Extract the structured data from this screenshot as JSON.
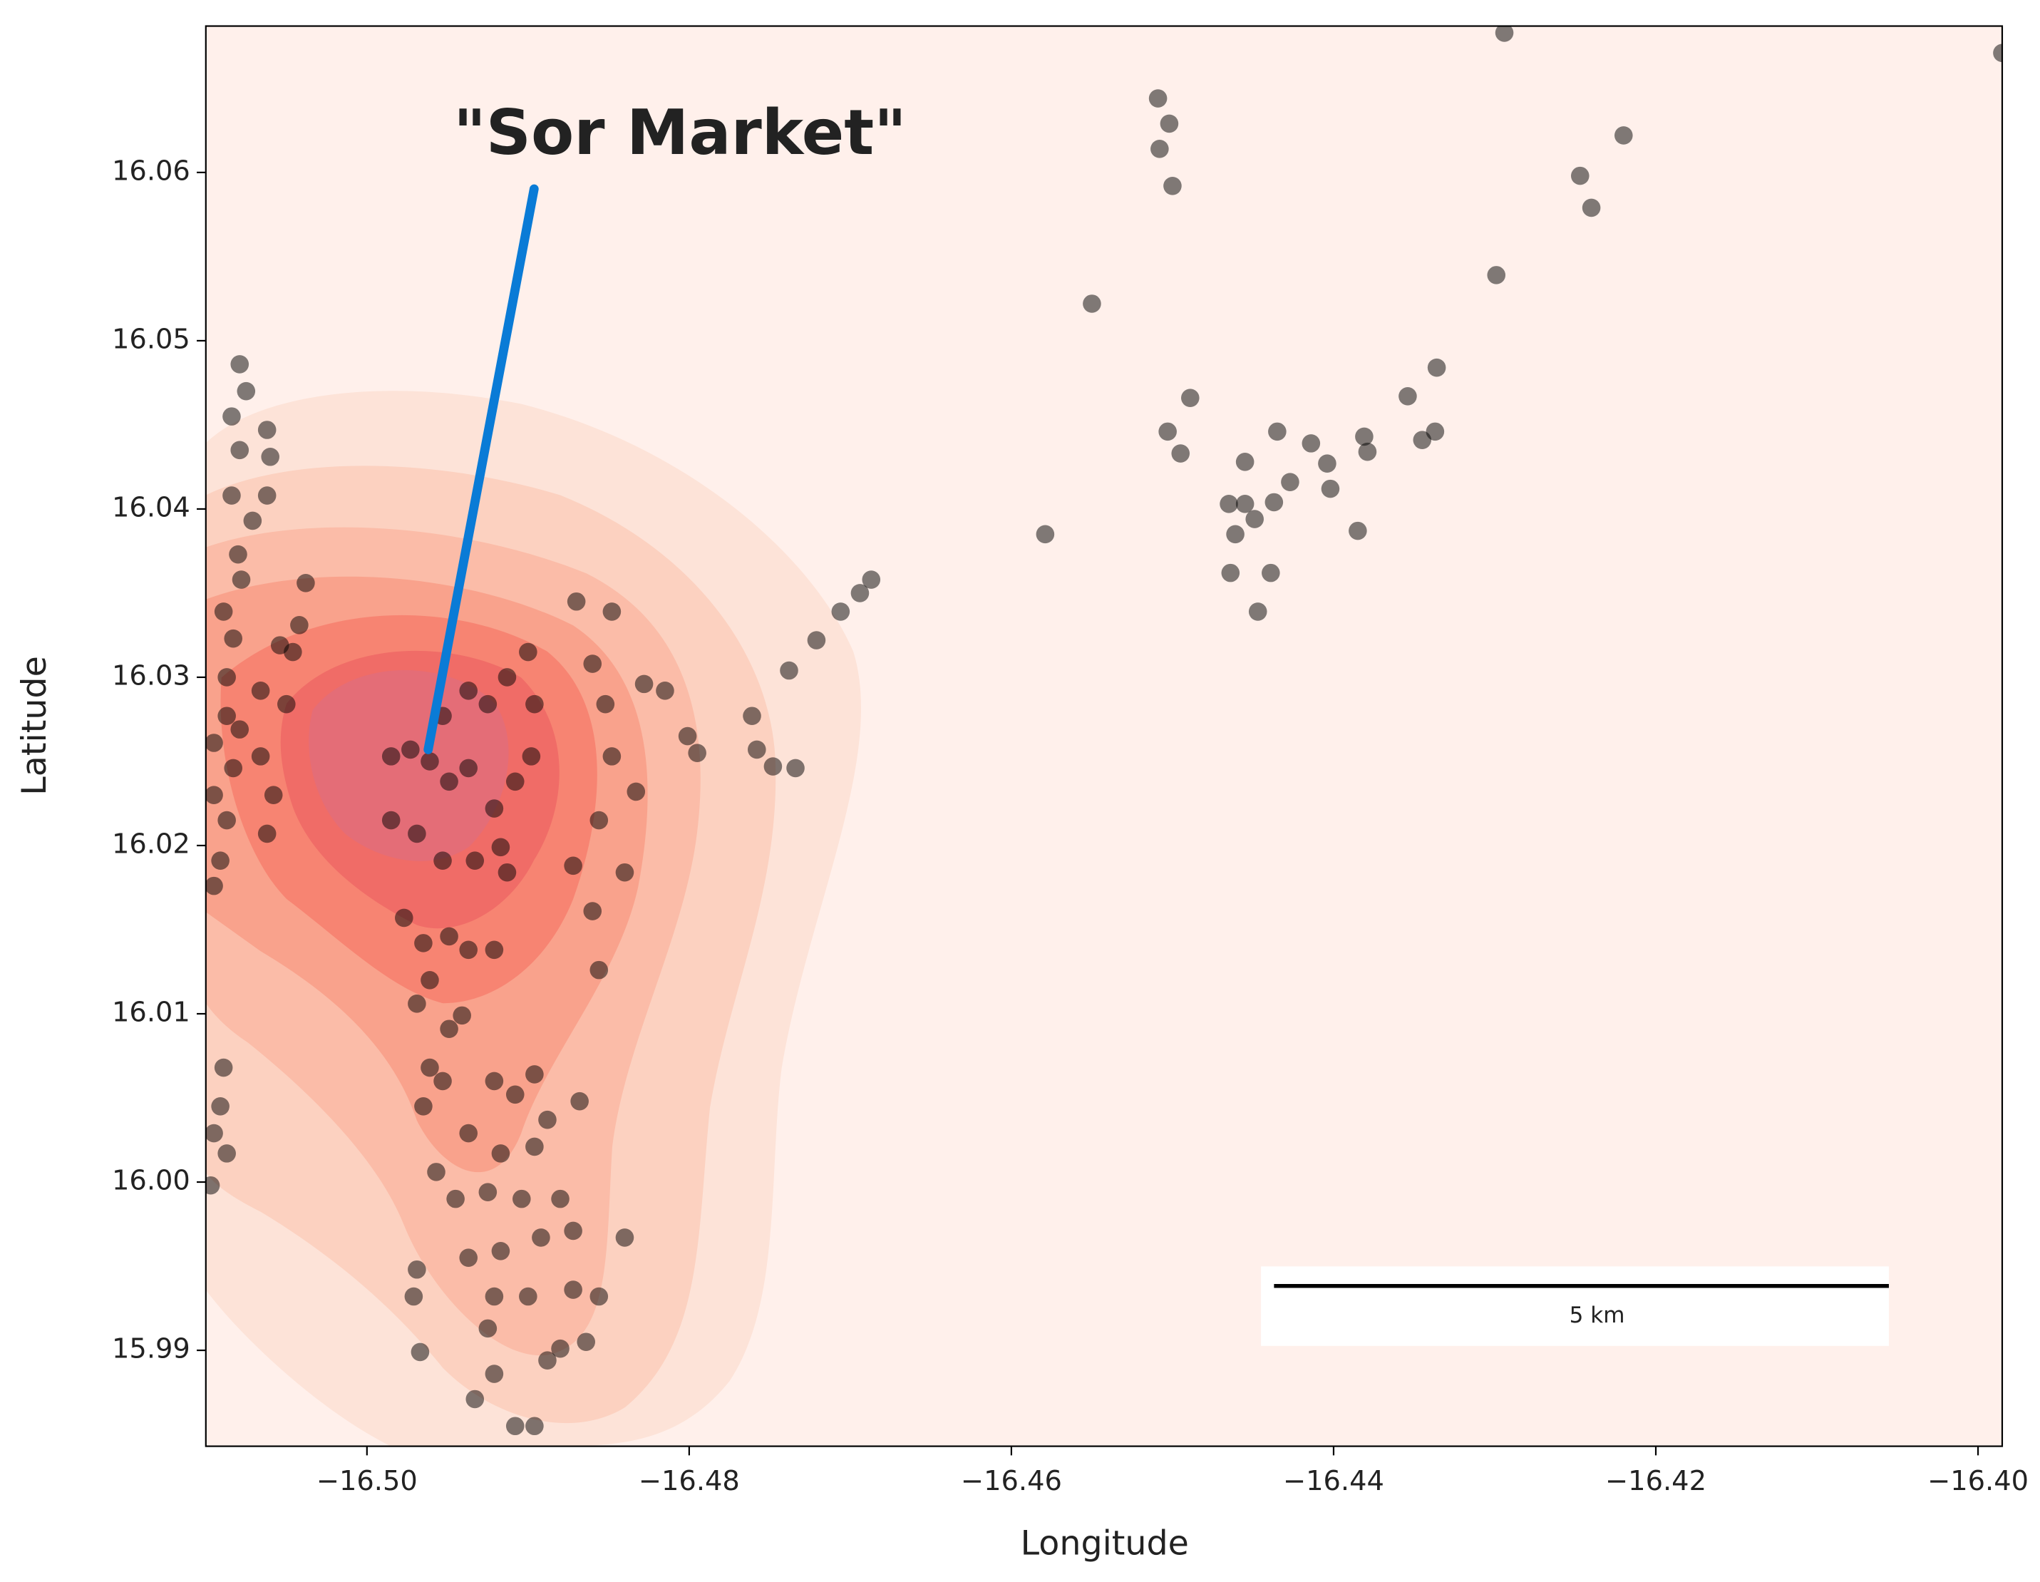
{
  "chart_data": {
    "type": "scatter",
    "x_label": "Longitude",
    "y_label": "Latitude",
    "xlim": [
      -16.51,
      -16.3985
    ],
    "ylim": [
      15.9843,
      16.0687
    ],
    "xticks": [
      {
        "value": -16.5,
        "label": "−16.50"
      },
      {
        "value": -16.48,
        "label": "−16.48"
      },
      {
        "value": -16.46,
        "label": "−16.46"
      },
      {
        "value": -16.44,
        "label": "−16.44"
      },
      {
        "value": -16.42,
        "label": "−16.42"
      },
      {
        "value": -16.4,
        "label": "−16.40"
      }
    ],
    "yticks": [
      15.99,
      {
        "value": 16.0,
        "label": "16.00"
      },
      16.01,
      16.02,
      16.03,
      16.04,
      16.05,
      16.06
    ],
    "grid": false,
    "color": "#000000",
    "annotation": {
      "text": "\"Sor Market\"",
      "color": "#0a7bd6",
      "x": -16.4962,
      "y": 16.0257
    },
    "scale_bar": "5 km",
    "x": [
      -16.4294,
      -16.3985,
      -16.4509,
      -16.4502,
      -16.4508,
      -16.45,
      -16.422,
      -16.4247,
      -16.424,
      -16.4299,
      -16.455,
      -16.4489,
      -16.4354,
      -16.4336,
      -16.4503,
      -16.4495,
      -16.4435,
      -16.4455,
      -16.4465,
      -16.4455,
      -16.4449,
      -16.4461,
      -16.4464,
      -16.4439,
      -16.4447,
      -16.4437,
      -16.4427,
      -16.4414,
      -16.4404,
      -16.4402,
      -16.4381,
      -16.4379,
      -16.4385,
      -16.4345,
      -16.4337,
      -16.4579,
      -16.4687,
      -16.4694,
      -16.4706,
      -16.4721,
      -16.4738,
      -16.4761,
      -16.4758,
      -16.4748,
      -16.4734,
      -16.4801,
      -16.4795,
      -16.4815,
      -16.4828,
      -16.4848,
      -16.487,
      -16.486,
      -16.4852,
      -16.4833,
      -16.4848,
      -16.4856,
      -16.484,
      -16.486,
      -16.4856,
      -16.4872,
      -16.4985,
      -16.4973,
      -16.4961,
      -16.4949,
      -16.4937,
      -16.4925,
      -16.4913,
      -16.49,
      -16.4896,
      -16.4898,
      -16.4908,
      -16.4921,
      -16.4917,
      -16.4913,
      -16.4985,
      -16.4969,
      -16.4953,
      -16.4933,
      -16.4977,
      -16.4965,
      -16.4949,
      -16.4961,
      -16.4937,
      -16.4921,
      -16.4969,
      -16.4949,
      -16.4941,
      -16.4961,
      -16.4965,
      -16.4953,
      -16.4921,
      -16.4908,
      -16.4896,
      -16.4888,
      -16.4868,
      -16.4896,
      -16.4917,
      -16.4937,
      -16.4957,
      -16.4945,
      -16.4925,
      -16.4904,
      -16.488,
      -16.4872,
      -16.4892,
      -16.4917,
      -16.4937,
      -16.4969,
      -16.4971,
      -16.4921,
      -16.49,
      -16.4872,
      -16.4856,
      -16.484,
      -16.4925,
      -16.4888,
      -16.488,
      -16.4864,
      -16.4921,
      -16.4933,
      -16.4908,
      -16.4896,
      -16.4967,
      -16.4937,
      -16.4953,
      -16.5079,
      -16.5075,
      -16.5084,
      -16.5062,
      -16.5079,
      -16.506,
      -16.5084,
      -16.5062,
      -16.5071,
      -16.508,
      -16.5078,
      -16.5038,
      -16.5089,
      -16.5042,
      -16.5083,
      -16.5054,
      -16.5046,
      -16.5087,
      -16.5066,
      -16.505,
      -16.5087,
      -16.5079,
      -16.5095,
      -16.5066,
      -16.5083,
      -16.5095,
      -16.5058,
      -16.5087,
      -16.5062,
      -16.5091,
      -16.5095,
      -16.5089,
      -16.5091,
      -16.5095,
      -16.5087,
      -16.5097
    ],
    "y": [
      16.0683,
      16.0671,
      16.0644,
      16.0629,
      16.0614,
      16.0592,
      16.0622,
      16.0598,
      16.0579,
      16.0539,
      16.0522,
      16.0466,
      16.0467,
      16.0484,
      16.0446,
      16.0433,
      16.0446,
      16.0428,
      16.0403,
      16.0403,
      16.0394,
      16.0385,
      16.0362,
      16.0362,
      16.0339,
      16.0404,
      16.0416,
      16.0439,
      16.0427,
      16.0412,
      16.0443,
      16.0434,
      16.0387,
      16.0441,
      16.0446,
      16.0385,
      16.0358,
      16.035,
      16.0339,
      16.0322,
      16.0304,
      16.0277,
      16.0257,
      16.0247,
      16.0246,
      16.0265,
      16.0255,
      16.0292,
      16.0296,
      16.0339,
      16.0345,
      16.0308,
      16.0284,
      16.0232,
      16.0253,
      16.0215,
      16.0184,
      16.0161,
      16.0126,
      16.0188,
      16.0253,
      16.0257,
      16.025,
      16.0238,
      16.0246,
      16.0284,
      16.03,
      16.0315,
      16.0284,
      16.0253,
      16.0238,
      16.0222,
      16.0199,
      16.0184,
      16.0215,
      16.0207,
      16.0191,
      16.0191,
      16.0157,
      16.0142,
      16.0146,
      16.012,
      16.0138,
      16.0138,
      16.0106,
      16.0091,
      16.0099,
      16.0068,
      16.0045,
      16.006,
      16.006,
      16.0052,
      16.0064,
      16.0037,
      16.0048,
      16.0021,
      16.0017,
      16.0029,
      16.0006,
      15.999,
      15.9994,
      15.999,
      15.999,
      15.9971,
      15.9967,
      15.9959,
      15.9955,
      15.9948,
      15.9932,
      15.9932,
      15.9932,
      15.9936,
      15.9932,
      15.9967,
      15.9913,
      15.9894,
      15.9901,
      15.9905,
      15.9886,
      15.9871,
      15.9855,
      15.9855,
      15.9899,
      16.0292,
      16.0277,
      16.0486,
      16.047,
      16.0455,
      16.0447,
      16.0435,
      16.0431,
      16.0408,
      16.0408,
      16.0393,
      16.0373,
      16.0358,
      16.0356,
      16.0339,
      16.0331,
      16.0323,
      16.0319,
      16.0315,
      16.03,
      16.0292,
      16.0284,
      16.0277,
      16.0269,
      16.0261,
      16.0253,
      16.0246,
      16.023,
      16.023,
      16.0215,
      16.0207,
      16.0191,
      16.0176,
      16.0068,
      16.0045,
      16.0029,
      16.0017,
      15.9998
    ]
  }
}
